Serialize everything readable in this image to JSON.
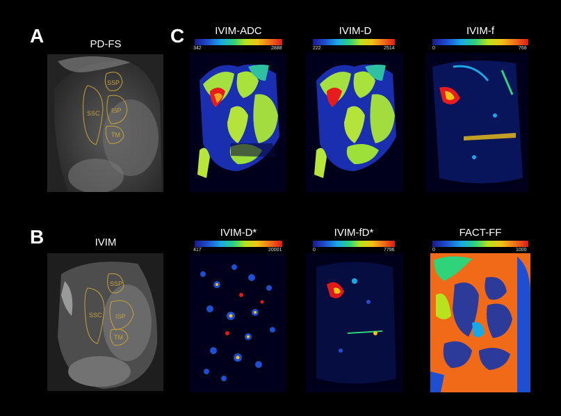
{
  "panels": {
    "a": {
      "letter": "A",
      "title": "PD-FS"
    },
    "b": {
      "letter": "B",
      "title": "IVIM"
    },
    "c": {
      "letter": "C"
    }
  },
  "roi_labels": {
    "ssp": "SSP",
    "ssc": "SSC",
    "isp": "ISP",
    "tm": "TM"
  },
  "maps": [
    {
      "title": "IVIM-ADC",
      "min": "342",
      "max": "2888"
    },
    {
      "title": "IVIM-D",
      "min": "222",
      "max": "2514"
    },
    {
      "title": "IVIM-f",
      "min": "0",
      "max": "768"
    },
    {
      "title": "IVIM-D*",
      "min": "417",
      "max": "20001"
    },
    {
      "title": "IVIM-fD*",
      "min": "0",
      "max": "7796"
    },
    {
      "title": "FACT-FF",
      "min": "0",
      "max": "1000"
    }
  ]
}
